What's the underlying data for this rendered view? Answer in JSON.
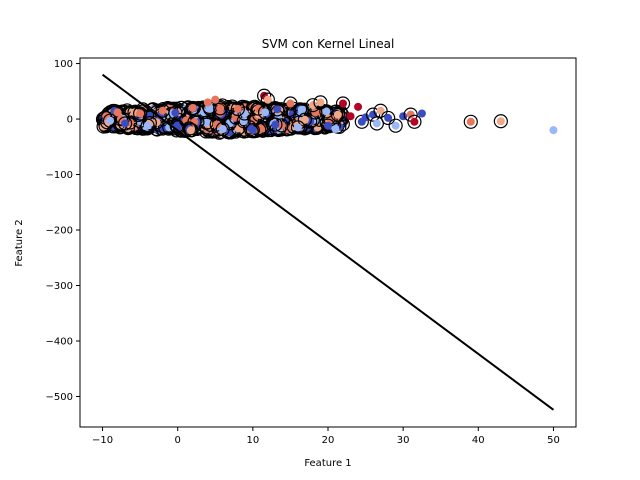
{
  "chart_data": {
    "type": "scatter",
    "title": "SVM con Kernel Lineal",
    "xlabel": "Feature 1",
    "ylabel": "Feature 2",
    "xlim": [
      -13,
      53
    ],
    "ylim": [
      -555,
      110
    ],
    "xticks": [
      -10,
      0,
      10,
      20,
      30,
      40,
      50
    ],
    "yticks": [
      -500,
      -400,
      -300,
      -200,
      -100,
      0,
      100
    ],
    "grid": false,
    "legend": "none",
    "colors": {
      "class_red": "#b40426",
      "class_red_light": "#e8765c",
      "class_peach": "#f0a888",
      "class_blue": "#3b4cc0",
      "class_blue_light": "#9ab8f8",
      "support_vector_edge": "#000000",
      "boundary_line": "#000000"
    },
    "decision_boundary": {
      "x": [
        -10,
        50
      ],
      "y": [
        80,
        -524
      ]
    },
    "dense_cluster": {
      "x_range": [
        -10,
        22
      ],
      "y_range": [
        -25,
        25
      ]
    },
    "points": [
      {
        "x": -9.5,
        "y": 5,
        "c": "class_red_light",
        "sv": false
      },
      {
        "x": -9,
        "y": -3,
        "c": "class_blue_light",
        "sv": true
      },
      {
        "x": -8,
        "y": 12,
        "c": "class_red_light",
        "sv": false
      },
      {
        "x": -7,
        "y": -8,
        "c": "class_blue",
        "sv": true
      },
      {
        "x": -5,
        "y": 10,
        "c": "class_red_light",
        "sv": true
      },
      {
        "x": -4,
        "y": -12,
        "c": "class_blue_light",
        "sv": true
      },
      {
        "x": -2,
        "y": 15,
        "c": "class_red_light",
        "sv": true
      },
      {
        "x": 0,
        "y": -15,
        "c": "class_blue",
        "sv": true
      },
      {
        "x": 2,
        "y": 20,
        "c": "class_red_light",
        "sv": true
      },
      {
        "x": 4,
        "y": 30,
        "c": "class_red_light",
        "sv": false
      },
      {
        "x": 5,
        "y": 35,
        "c": "class_red_light",
        "sv": false
      },
      {
        "x": 6,
        "y": -18,
        "c": "class_blue_light",
        "sv": true
      },
      {
        "x": 8,
        "y": 18,
        "c": "class_red_light",
        "sv": true
      },
      {
        "x": 10,
        "y": -20,
        "c": "class_blue",
        "sv": true
      },
      {
        "x": 11.5,
        "y": 42,
        "c": "class_red",
        "sv": true
      },
      {
        "x": 12,
        "y": 35,
        "c": "class_peach",
        "sv": true
      },
      {
        "x": 13,
        "y": -10,
        "c": "class_blue",
        "sv": true
      },
      {
        "x": 15,
        "y": 28,
        "c": "class_red_light",
        "sv": true
      },
      {
        "x": 16,
        "y": -15,
        "c": "class_blue_light",
        "sv": true
      },
      {
        "x": 18,
        "y": 25,
        "c": "class_peach",
        "sv": true
      },
      {
        "x": 19,
        "y": 30,
        "c": "class_peach",
        "sv": true
      },
      {
        "x": 20,
        "y": -12,
        "c": "class_blue",
        "sv": true
      },
      {
        "x": 21,
        "y": -18,
        "c": "class_blue_light",
        "sv": false
      },
      {
        "x": 22,
        "y": 28,
        "c": "class_red",
        "sv": true
      },
      {
        "x": 23,
        "y": 5,
        "c": "class_red",
        "sv": false
      },
      {
        "x": 24,
        "y": 22,
        "c": "class_red",
        "sv": false
      },
      {
        "x": 24.5,
        "y": -5,
        "c": "class_blue",
        "sv": true
      },
      {
        "x": 25,
        "y": 3,
        "c": "class_blue",
        "sv": false
      },
      {
        "x": 26,
        "y": 8,
        "c": "class_blue",
        "sv": true
      },
      {
        "x": 26.5,
        "y": -8,
        "c": "class_blue_light",
        "sv": true
      },
      {
        "x": 27,
        "y": 15,
        "c": "class_peach",
        "sv": true
      },
      {
        "x": 28,
        "y": 2,
        "c": "class_blue",
        "sv": true
      },
      {
        "x": 29,
        "y": -12,
        "c": "class_blue_light",
        "sv": true
      },
      {
        "x": 30,
        "y": 5,
        "c": "class_blue",
        "sv": false
      },
      {
        "x": 31,
        "y": 8,
        "c": "class_red_light",
        "sv": true
      },
      {
        "x": 31.5,
        "y": -5,
        "c": "class_red",
        "sv": true
      },
      {
        "x": 32.5,
        "y": 10,
        "c": "class_blue",
        "sv": false
      },
      {
        "x": 39,
        "y": -5,
        "c": "class_red_light",
        "sv": true
      },
      {
        "x": 43,
        "y": -4,
        "c": "class_peach",
        "sv": true
      },
      {
        "x": 50,
        "y": -20,
        "c": "class_blue_light",
        "sv": false
      }
    ]
  }
}
